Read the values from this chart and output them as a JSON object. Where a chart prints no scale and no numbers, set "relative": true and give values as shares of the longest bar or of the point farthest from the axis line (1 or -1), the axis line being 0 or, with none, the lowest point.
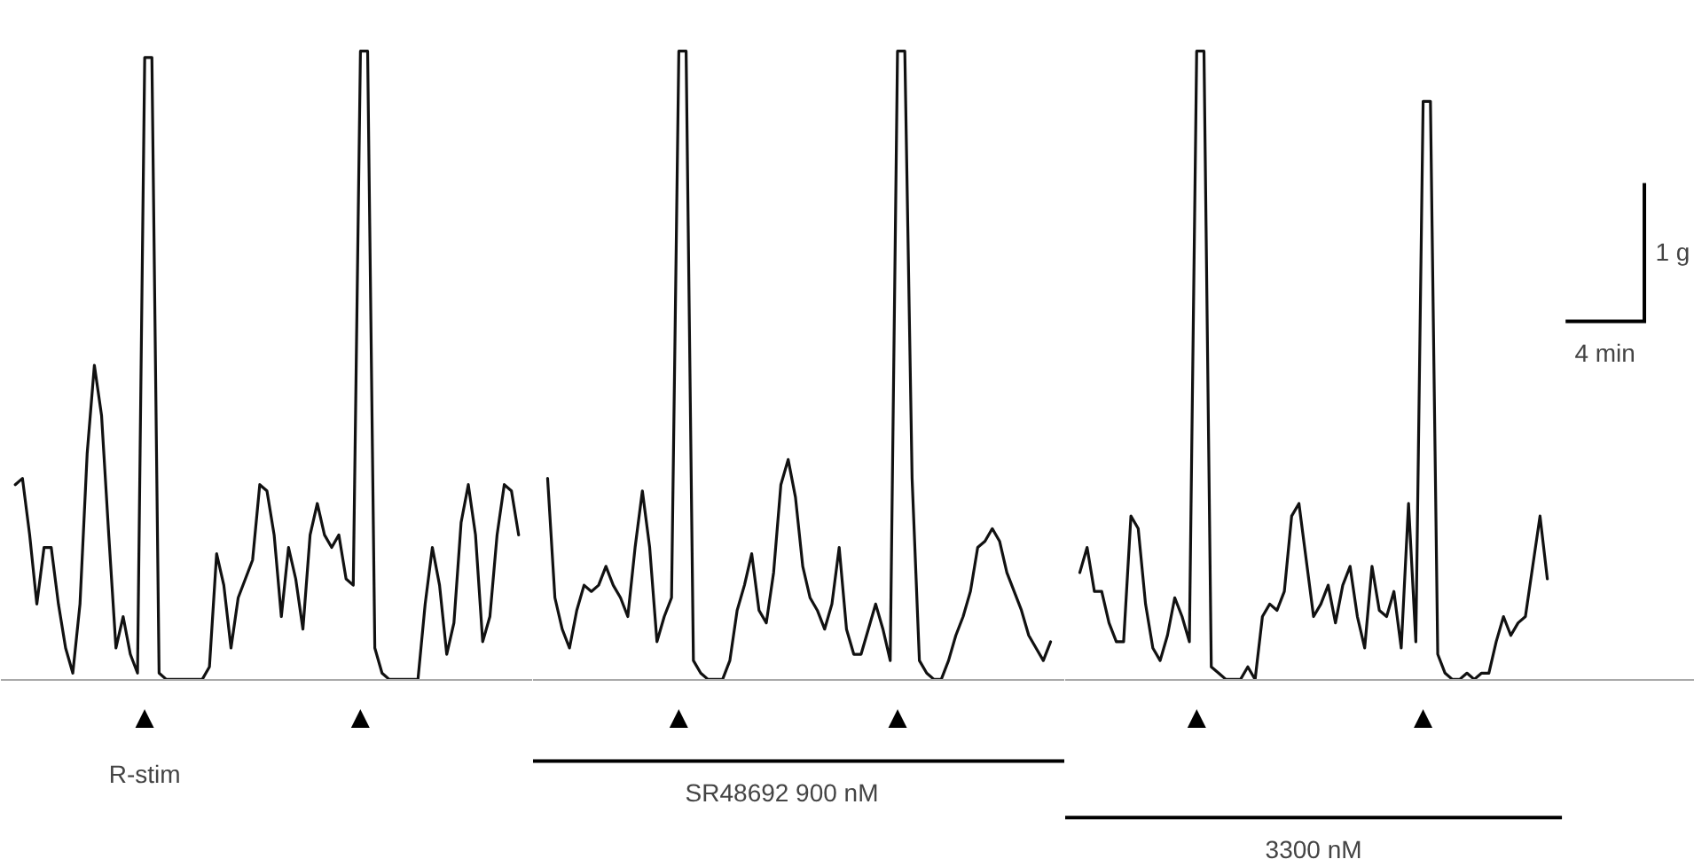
{
  "chart_data": [
    {
      "type": "line",
      "relative": true,
      "line_style": "solid",
      "categories": [
        null,
        null,
        null,
        null,
        null,
        null,
        null,
        null,
        null,
        null,
        null,
        null,
        null,
        null,
        null,
        null,
        null,
        null,
        null,
        null,
        null,
        null,
        null,
        null,
        null,
        null,
        null,
        null,
        null,
        null,
        null,
        null,
        null,
        null,
        null,
        null,
        null,
        null,
        null,
        null,
        null,
        null,
        null,
        null,
        null,
        null,
        null,
        null,
        null,
        null,
        null,
        null,
        null,
        null,
        null,
        null,
        null,
        null,
        null,
        null,
        null,
        null,
        null,
        null,
        null,
        null,
        null,
        null,
        null,
        null,
        null
      ],
      "series": [
        {
          "color": "#111111",
          "values": [
            0.31,
            0.32,
            0.23,
            0.12,
            0.21,
            0.21,
            0.12,
            0.05,
            0.01,
            0.12,
            0.36,
            0.5,
            0.42,
            0.23,
            0.05,
            0.1,
            0.04,
            0.01,
            0.99,
            0.99,
            0.01,
            0,
            0,
            0,
            0,
            0,
            0,
            0.02,
            0.2,
            0.15,
            0.05,
            0.13,
            0.16,
            0.19,
            0.31,
            0.3,
            0.23,
            0.1,
            0.21,
            0.16,
            0.08,
            0.23,
            0.28,
            0.23,
            0.21,
            0.23,
            0.16,
            0.15,
            1,
            1,
            0.05,
            0.01,
            0,
            0,
            0,
            0,
            0,
            0.12,
            0.21,
            0.15,
            0.04,
            0.09,
            0.25,
            0.31,
            0.23,
            0.06,
            0.1,
            0.23,
            0.31,
            0.3,
            0.23
          ]
        }
      ],
      "annotations": [
        "▲",
        "▲",
        "R-stim"
      ]
    },
    {
      "type": "line",
      "relative": true,
      "line_style": "solid",
      "categories": [
        null,
        null,
        null,
        null,
        null,
        null,
        null,
        null,
        null,
        null,
        null,
        null,
        null,
        null,
        null,
        null,
        null,
        null,
        null,
        null,
        null,
        null,
        null,
        null,
        null,
        null,
        null,
        null,
        null,
        null,
        null,
        null,
        null,
        null,
        null,
        null,
        null,
        null,
        null,
        null,
        null,
        null,
        null,
        null,
        null,
        null,
        null,
        null,
        null,
        null,
        null,
        null,
        null,
        null,
        null,
        null,
        null,
        null,
        null,
        null,
        null,
        null,
        null,
        null,
        null,
        null,
        null,
        null,
        null,
        null
      ],
      "series": [
        {
          "color": "#111111",
          "values": [
            0.32,
            0.13,
            0.08,
            0.05,
            0.11,
            0.15,
            0.14,
            0.15,
            0.18,
            0.15,
            0.13,
            0.1,
            0.21,
            0.3,
            0.21,
            0.06,
            0.1,
            0.13,
            1,
            1,
            0.03,
            0.01,
            0,
            0,
            0,
            0.03,
            0.11,
            0.15,
            0.2,
            0.11,
            0.09,
            0.17,
            0.31,
            0.35,
            0.29,
            0.18,
            0.13,
            0.11,
            0.08,
            0.12,
            0.21,
            0.08,
            0.04,
            0.04,
            0.08,
            0.12,
            0.08,
            0.03,
            1,
            1,
            0.32,
            0.03,
            0.01,
            0,
            0,
            0.03,
            0.07,
            0.1,
            0.14,
            0.21,
            0.22,
            0.24,
            0.22,
            0.17,
            0.14,
            0.11,
            0.07,
            0.05,
            0.03,
            0.06
          ]
        }
      ],
      "annotations": [
        "▲",
        "▲",
        "SR48692      900 nM"
      ]
    },
    {
      "type": "line",
      "relative": true,
      "line_style": "solid",
      "categories": [
        null,
        null,
        null,
        null,
        null,
        null,
        null,
        null,
        null,
        null,
        null,
        null,
        null,
        null,
        null,
        null,
        null,
        null,
        null,
        null,
        null,
        null,
        null,
        null,
        null,
        null,
        null,
        null,
        null,
        null,
        null,
        null,
        null,
        null,
        null,
        null,
        null,
        null,
        null,
        null,
        null,
        null,
        null,
        null,
        null,
        null,
        null,
        null,
        null,
        null,
        null,
        null,
        null,
        null,
        null,
        null,
        null,
        null,
        null,
        null,
        null,
        null,
        null,
        null,
        null
      ],
      "series": [
        {
          "color": "#111111",
          "values": [
            0.17,
            0.21,
            0.14,
            0.14,
            0.09,
            0.06,
            0.06,
            0.26,
            0.24,
            0.12,
            0.05,
            0.03,
            0.07,
            0.13,
            0.1,
            0.06,
            1,
            1,
            0.02,
            0.01,
            0,
            0,
            0,
            0.02,
            0,
            0.1,
            0.12,
            0.11,
            0.14,
            0.26,
            0.28,
            0.19,
            0.1,
            0.12,
            0.15,
            0.09,
            0.15,
            0.18,
            0.1,
            0.05,
            0.18,
            0.11,
            0.1,
            0.14,
            0.05,
            0.28,
            0.06,
            0.92,
            0.92,
            0.04,
            0.01,
            0,
            0,
            0.01,
            0,
            0.01,
            0.01,
            0.06,
            0.1,
            0.07,
            0.09,
            0.1,
            0.18,
            0.26,
            0.16
          ]
        }
      ],
      "annotations": [
        "▲",
        "▲",
        "3300 nM",
        "1 g",
        "4 min"
      ]
    }
  ]
}
